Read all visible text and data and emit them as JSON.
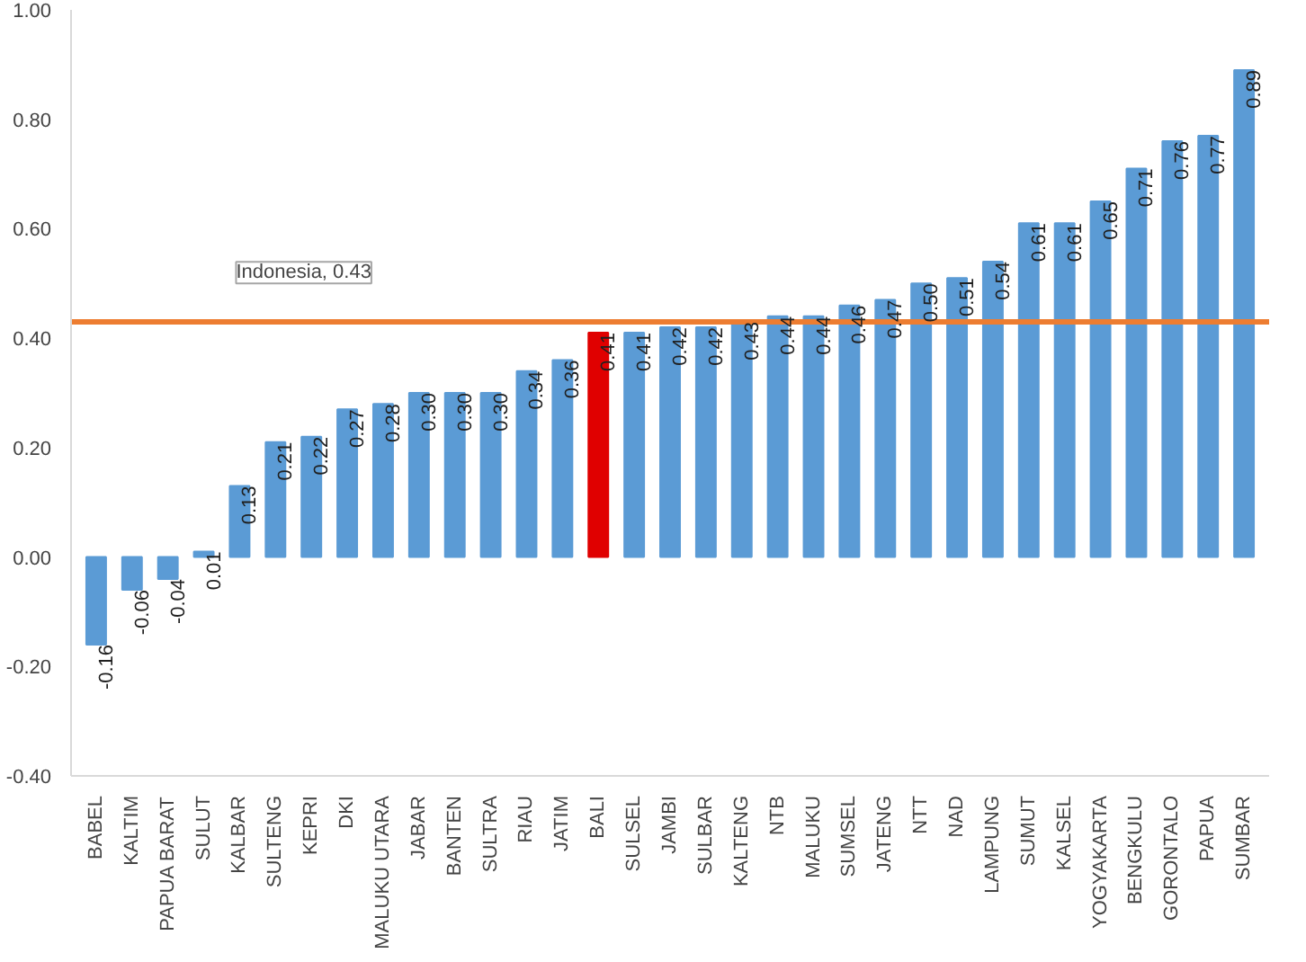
{
  "chart_data": {
    "type": "bar",
    "categories": [
      "BABEL",
      "KALTIM",
      "PAPUA BARAT",
      "SULUT",
      "KALBAR",
      "SULTENG",
      "KEPRI",
      "DKI",
      "MALUKU UTARA",
      "JABAR",
      "BANTEN",
      "SULTRA",
      "RIAU",
      "JATIM",
      "BALI",
      "SULSEL",
      "JAMBI",
      "SULBAR",
      "KALTENG",
      "NTB",
      "MALUKU",
      "SUMSEL",
      "JATENG",
      "NTT",
      "NAD",
      "LAMPUNG",
      "SUMUT",
      "KALSEL",
      "YOGYAKARTA",
      "BENGKULU",
      "GORONTALO",
      "PAPUA",
      "SUMBAR"
    ],
    "values": [
      -0.16,
      -0.06,
      -0.04,
      0.01,
      0.13,
      0.21,
      0.22,
      0.27,
      0.28,
      0.3,
      0.3,
      0.3,
      0.34,
      0.36,
      0.41,
      0.41,
      0.42,
      0.42,
      0.43,
      0.44,
      0.44,
      0.46,
      0.47,
      0.5,
      0.51,
      0.54,
      0.61,
      0.61,
      0.65,
      0.71,
      0.76,
      0.77,
      0.89
    ],
    "value_labels": [
      "-0.16",
      "-0.06",
      "-0.04",
      "0.01",
      "0.13",
      "0.21",
      "0.22",
      "0.27",
      "0.28",
      "0.30",
      "0.30",
      "0.30",
      "0.34",
      "0.36",
      "0.41",
      "0.41",
      "0.42",
      "0.42",
      "0.43",
      "0.44",
      "0.44",
      "0.46",
      "0.47",
      "0.50",
      "0.51",
      "0.54",
      "0.61",
      "0.61",
      "0.65",
      "0.71",
      "0.76",
      "0.77",
      "0.89"
    ],
    "colors": [
      "#5b9bd5",
      "#5b9bd5",
      "#5b9bd5",
      "#5b9bd5",
      "#5b9bd5",
      "#5b9bd5",
      "#5b9bd5",
      "#5b9bd5",
      "#5b9bd5",
      "#5b9bd5",
      "#5b9bd5",
      "#5b9bd5",
      "#5b9bd5",
      "#5b9bd5",
      "#e00000",
      "#5b9bd5",
      "#5b9bd5",
      "#5b9bd5",
      "#5b9bd5",
      "#5b9bd5",
      "#5b9bd5",
      "#5b9bd5",
      "#5b9bd5",
      "#5b9bd5",
      "#5b9bd5",
      "#5b9bd5",
      "#5b9bd5",
      "#5b9bd5",
      "#5b9bd5",
      "#5b9bd5",
      "#5b9bd5",
      "#5b9bd5",
      "#5b9bd5"
    ],
    "ylim": [
      -0.4,
      1.0
    ],
    "yticks": [
      {
        "value": -0.4,
        "label": "-0.40"
      },
      {
        "value": -0.2,
        "label": "-0.20"
      },
      {
        "value": 0,
        "label": "0.00"
      },
      {
        "value": 0.2,
        "label": "0.20"
      },
      {
        "value": 0.4,
        "label": "0.40"
      },
      {
        "value": 0.6,
        "label": "0.60"
      },
      {
        "value": 0.8,
        "label": "0.80"
      },
      {
        "value": 1.0,
        "label": "1.00"
      }
    ],
    "ref_lines": [
      {
        "axis": "y",
        "value": 0.43,
        "label": "Indonesia, 0.43",
        "color": "#ed7d31"
      }
    ],
    "grid": false
  }
}
